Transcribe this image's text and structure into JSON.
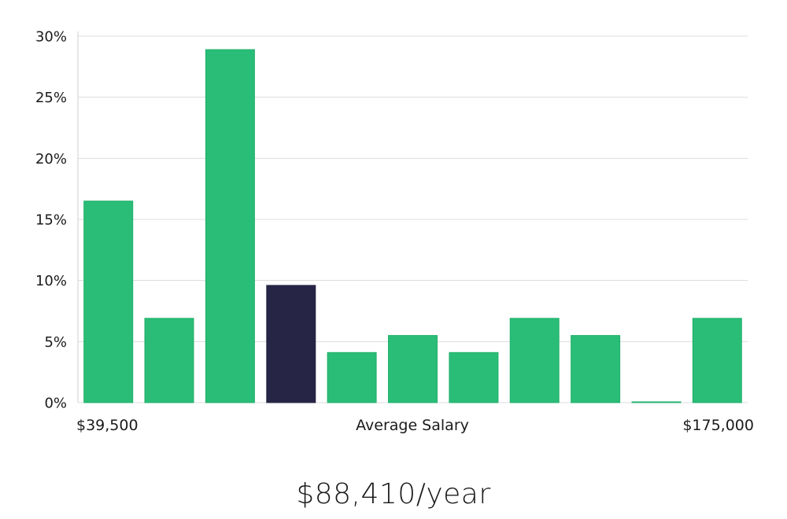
{
  "chart_data": {
    "type": "bar",
    "xlabel": "Average Salary",
    "x_range_labels": {
      "min": "$39,500",
      "max": "$175,000"
    },
    "y_ticks": [
      "0%",
      "5%",
      "10%",
      "15%",
      "20%",
      "25%",
      "30%"
    ],
    "ylim": [
      0,
      30
    ],
    "grid": true,
    "values": [
      16.5,
      6.9,
      28.9,
      9.6,
      4.1,
      5.5,
      4.1,
      6.9,
      5.5,
      0.0,
      6.9
    ],
    "highlight_index": 3,
    "colors": {
      "bar": "#2abd77",
      "bar_border": "#22b06b",
      "highlight": "#272545"
    }
  },
  "summary": {
    "salary_text": "$88,410/year"
  }
}
